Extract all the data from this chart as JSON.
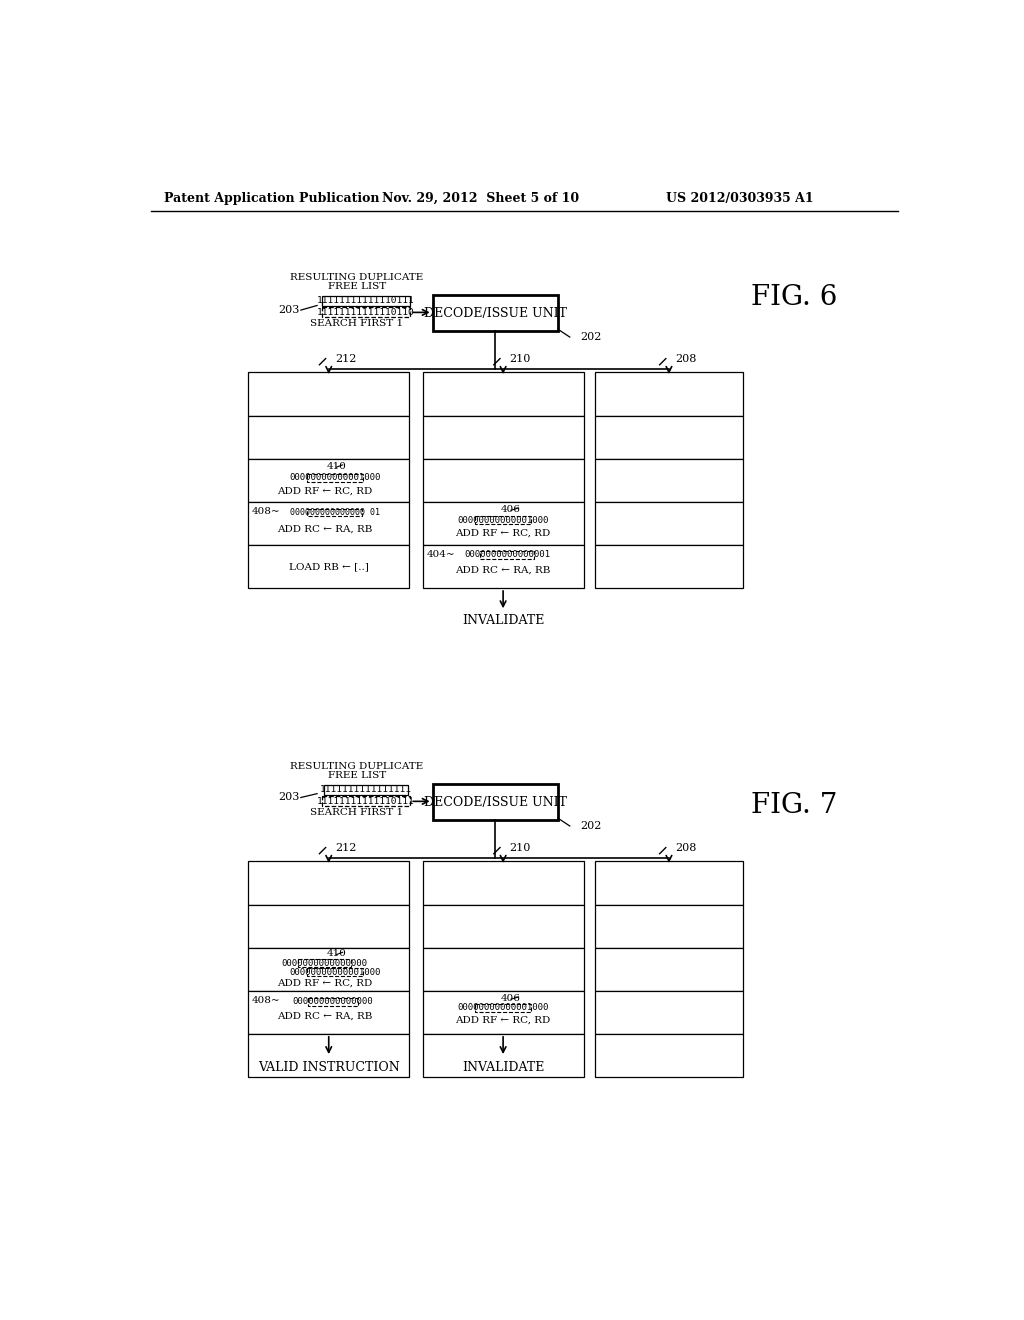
{
  "header_left": "Patent Application Publication",
  "header_mid": "Nov. 29, 2012  Sheet 5 of 10",
  "header_right": "US 2012/0303935 A1",
  "fig6": {
    "fig_label": "FIG. 6",
    "free_list_line1": "RESULTING DUPLICATE",
    "free_list_line2": "FREE LIST",
    "bits_top": "11111111111110111",
    "bits_bot": "11111111111110110",
    "search_first": "SEARCH FIRST 1",
    "decode_label": "DECODE/ISSUE UNIT",
    "label_203": "203",
    "label_202": "202",
    "col_labels": [
      "212",
      "210",
      "208"
    ],
    "label_410": "410",
    "label_408": "408~",
    "label_406": "406",
    "label_404": "404~",
    "col0_r2_bits": "00000000000001000",
    "col0_r2_instr": "ADD RF ← RC, RD",
    "col0_r3_bits": "000000000000000 01",
    "col0_r3_instr": "ADD RC ← RA, RB",
    "col0_r4_instr": "LOAD RB ← [..]",
    "col1_r3_bits": "00000000000001000",
    "col1_r3_instr": "ADD RF ← RC, RD",
    "col1_r4_bits": "0000000000000001",
    "col1_r4_instr": "ADD RC ← RA, RB",
    "invalidate_label": "INVALIDATE"
  },
  "fig7": {
    "fig_label": "FIG. 7",
    "free_list_line1": "RESULTING DUPLICATE",
    "free_list_line2": "FREE LIST",
    "bits_top": "1111111111111111",
    "bits_bot": "11111111111110111",
    "search_first": "SEARCH FIRST 1",
    "decode_label": "DECODE/ISSUE UNIT",
    "label_203": "203",
    "label_202": "202",
    "col_labels": [
      "212",
      "210",
      "208"
    ],
    "label_410": "410",
    "label_408": "408~",
    "label_406": "406",
    "col0_r2_bits_a": "0000000000000000",
    "col0_r2_bits_b": "00000000000001000",
    "col0_r2_instr": "ADD RF ← RC, RD",
    "col0_r3_bits": "000000000000000",
    "col0_r3_instr": "ADD RC ← RA, RB",
    "col1_r3_bits": "00000000000001000",
    "col1_r3_instr": "ADD RF ← RC, RD",
    "valid_label": "VALID INSTRUCTION",
    "invalidate_label": "INVALIDATE"
  }
}
